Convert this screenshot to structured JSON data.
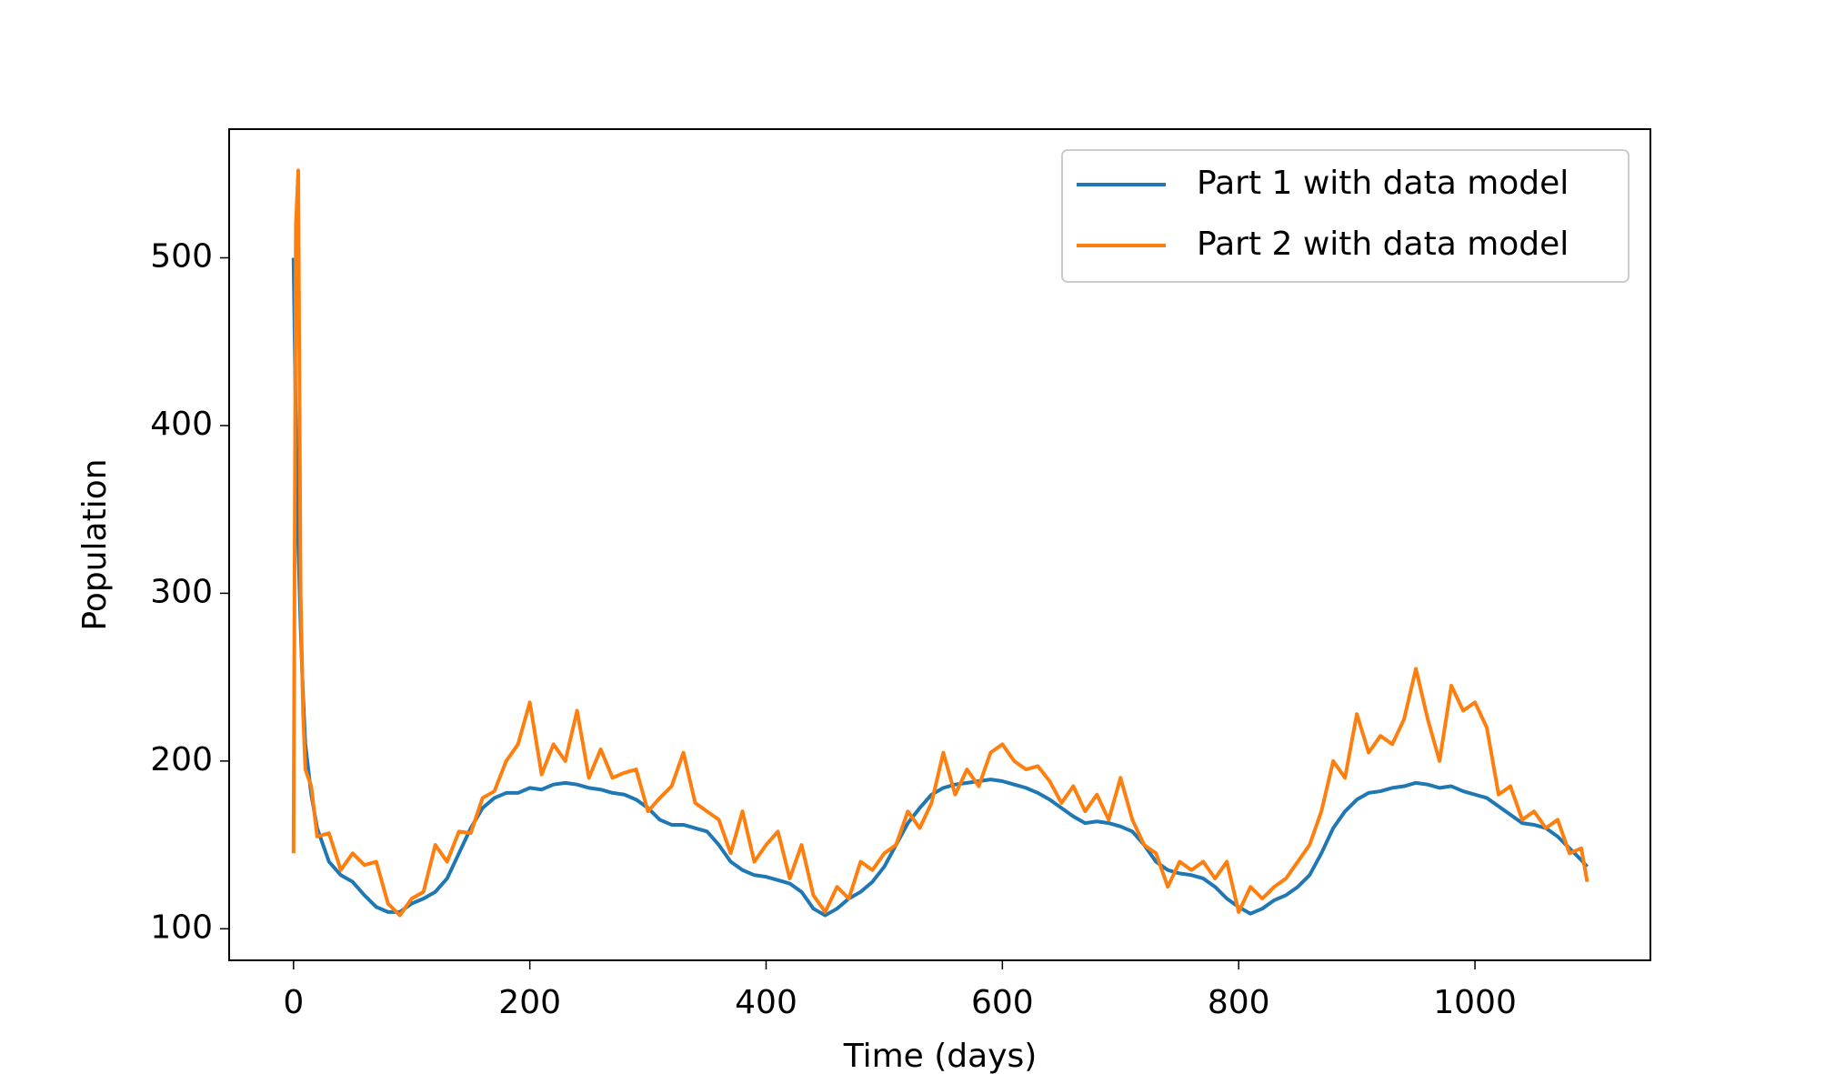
{
  "chart_data": {
    "type": "line",
    "x": [
      0,
      2,
      4,
      6,
      8,
      10,
      15,
      20,
      30,
      40,
      50,
      60,
      70,
      80,
      90,
      100,
      110,
      120,
      130,
      140,
      150,
      160,
      170,
      180,
      190,
      200,
      210,
      220,
      230,
      240,
      250,
      260,
      270,
      280,
      290,
      300,
      310,
      320,
      330,
      340,
      350,
      360,
      370,
      380,
      390,
      400,
      410,
      420,
      430,
      440,
      450,
      460,
      470,
      480,
      490,
      500,
      510,
      520,
      530,
      540,
      550,
      560,
      570,
      580,
      590,
      600,
      610,
      620,
      630,
      640,
      650,
      660,
      670,
      680,
      690,
      700,
      710,
      720,
      730,
      740,
      750,
      760,
      770,
      780,
      790,
      800,
      810,
      820,
      830,
      840,
      850,
      860,
      870,
      880,
      890,
      900,
      910,
      920,
      930,
      940,
      950,
      960,
      970,
      980,
      990,
      1000,
      1010,
      1020,
      1030,
      1040,
      1050,
      1060,
      1070,
      1080,
      1090,
      1095
    ],
    "series": [
      {
        "name": "Part 1 with data model",
        "color": "#1f77b4",
        "values": [
          500,
          400,
          330,
          280,
          240,
          210,
          180,
          160,
          140,
          132,
          128,
          120,
          113,
          110,
          110,
          115,
          118,
          122,
          130,
          145,
          160,
          172,
          178,
          181,
          181,
          184,
          183,
          186,
          187,
          186,
          184,
          183,
          181,
          180,
          177,
          172,
          165,
          162,
          162,
          160,
          158,
          150,
          140,
          135,
          132,
          131,
          129,
          127,
          122,
          112,
          108,
          112,
          118,
          122,
          128,
          137,
          150,
          163,
          172,
          180,
          184,
          186,
          187,
          188,
          189,
          188,
          186,
          184,
          181,
          177,
          172,
          167,
          163,
          164,
          163,
          161,
          158,
          150,
          140,
          135,
          133,
          132,
          130,
          125,
          118,
          113,
          109,
          112,
          117,
          120,
          125,
          132,
          145,
          160,
          170,
          177,
          181,
          182,
          184,
          185,
          187,
          186,
          184,
          185,
          182,
          180,
          178,
          173,
          168,
          163,
          162,
          160,
          155,
          148,
          141,
          137
        ]
      },
      {
        "name": "Part 2 with data model",
        "color": "#ff7f0e",
        "values": [
          145,
          520,
          552,
          300,
          230,
          195,
          185,
          155,
          157,
          135,
          145,
          138,
          140,
          115,
          108,
          118,
          122,
          150,
          140,
          158,
          157,
          178,
          182,
          200,
          210,
          235,
          192,
          210,
          200,
          230,
          190,
          207,
          190,
          193,
          195,
          170,
          178,
          185,
          205,
          175,
          170,
          165,
          145,
          170,
          140,
          150,
          158,
          130,
          150,
          120,
          110,
          125,
          118,
          140,
          135,
          145,
          150,
          170,
          160,
          175,
          205,
          180,
          195,
          185,
          205,
          210,
          200,
          195,
          197,
          188,
          175,
          185,
          170,
          180,
          165,
          190,
          165,
          150,
          145,
          125,
          140,
          135,
          140,
          130,
          140,
          110,
          125,
          118,
          125,
          130,
          140,
          150,
          170,
          200,
          190,
          228,
          205,
          215,
          210,
          225,
          255,
          225,
          200,
          245,
          230,
          235,
          220,
          180,
          185,
          165,
          170,
          160,
          165,
          145,
          148,
          128
        ]
      }
    ],
    "xlabel": "Time (days)",
    "ylabel": "Population",
    "xlim": [
      -54.5,
      1148.5
    ],
    "ylim": [
      81.2,
      576.7
    ],
    "xticks": [
      0,
      200,
      400,
      600,
      800,
      1000
    ],
    "yticks": [
      100,
      200,
      300,
      400,
      500
    ],
    "legend": "upper right"
  }
}
